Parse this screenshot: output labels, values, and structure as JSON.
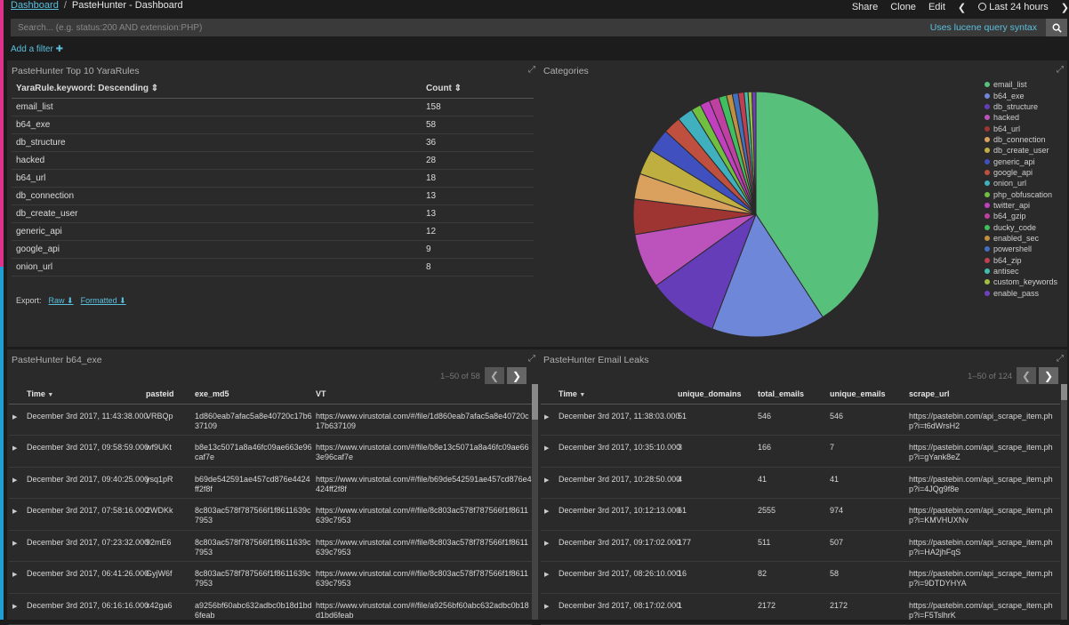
{
  "breadcrumb": {
    "root": "Dashboard",
    "current": "PasteHunter - Dashboard"
  },
  "topnav": {
    "share": "Share",
    "clone": "Clone",
    "edit": "Edit",
    "time_range": "Last 24 hours"
  },
  "search": {
    "placeholder": "Search... (e.g. status:200 AND extension:PHP)",
    "hint": "Uses lucene query syntax"
  },
  "filter": {
    "add_label": "Add a filter",
    "add_icon": "plus-icon"
  },
  "yara_panel": {
    "title": "PasteHunter Top 10 YaraRules",
    "columns": [
      "YaraRule.keyword: Descending",
      "Count"
    ],
    "rows": [
      [
        "email_list",
        "158"
      ],
      [
        "b64_exe",
        "58"
      ],
      [
        "db_structure",
        "36"
      ],
      [
        "hacked",
        "28"
      ],
      [
        "b64_url",
        "18"
      ],
      [
        "db_connection",
        "13"
      ],
      [
        "db_create_user",
        "13"
      ],
      [
        "generic_api",
        "12"
      ],
      [
        "google_api",
        "9"
      ],
      [
        "onion_url",
        "8"
      ]
    ],
    "export": {
      "label": "Export:",
      "raw": "Raw",
      "formatted": "Formatted"
    }
  },
  "categories_panel": {
    "title": "Categories",
    "legend": [
      "email_list",
      "b64_exe",
      "db_structure",
      "hacked",
      "b64_url",
      "db_connection",
      "db_create_user",
      "generic_api",
      "google_api",
      "onion_url",
      "php_obfuscation",
      "twitter_api",
      "b64_gzip",
      "ducky_code",
      "enabled_sec",
      "powershell",
      "b64_zip",
      "antisec",
      "custom_keywords",
      "enable_pass"
    ]
  },
  "chart_data": {
    "type": "pie",
    "title": "Categories",
    "labels": [
      "email_list",
      "b64_exe",
      "db_structure",
      "hacked",
      "b64_url",
      "db_connection",
      "db_create_user",
      "generic_api",
      "google_api",
      "onion_url",
      "php_obfuscation",
      "twitter_api",
      "b64_gzip",
      "ducky_code",
      "enabled_sec",
      "powershell",
      "b64_zip",
      "antisec",
      "custom_keywords",
      "enable_pass"
    ],
    "values": [
      158,
      58,
      36,
      28,
      18,
      13,
      13,
      12,
      9,
      8,
      5,
      5,
      5,
      4,
      3,
      3,
      3,
      2,
      2,
      2
    ],
    "colors": [
      "#57c17b",
      "#6f87d8",
      "#663db8",
      "#bc52bc",
      "#9e3533",
      "#daa05d",
      "#bfaf40",
      "#4050bf",
      "#bf5040",
      "#40b0bf",
      "#70bf40",
      "#c040bf",
      "#bf40a0",
      "#40bf60",
      "#c09040",
      "#4070bf",
      "#bf4050",
      "#40bfb0",
      "#a0bf40",
      "#7040bf"
    ],
    "legend_position": "right"
  },
  "b64_panel": {
    "title": "PasteHunter b64_exe",
    "pager": "1–50 of 58",
    "columns": [
      "Time",
      "pasteid",
      "exe_md5",
      "VT"
    ],
    "rows": [
      [
        "December 3rd 2017, 11:43:38.000",
        "VRBQp",
        "1d860eab7afac5a8e40720c17b637109",
        "https://www.virustotal.com/#/file/1d860eab7afac5a8e40720c17b637109"
      ],
      [
        "December 3rd 2017, 09:58:59.000",
        "wf9UKt",
        "b8e13c5071a8a46fc09ae663e96caf7e",
        "https://www.virustotal.com/#/file/b8e13c5071a8a46fc09ae663e96caf7e"
      ],
      [
        "December 3rd 2017, 09:40:25.000",
        "ysq1pR",
        "b69de542591ae457cd876e4424ff2f8f",
        "https://www.virustotal.com/#/file/b69de542591ae457cd876e4424ff2f8f"
      ],
      [
        "December 3rd 2017, 07:58:16.000",
        "2WDKk",
        "8c803ac578f787566f1f8611639c7953",
        "https://www.virustotal.com/#/file/8c803ac578f787566f1f8611639c7953"
      ],
      [
        "December 3rd 2017, 07:23:32.000",
        "92mE6",
        "8c803ac578f787566f1f8611639c7953",
        "https://www.virustotal.com/#/file/8c803ac578f787566f1f8611639c7953"
      ],
      [
        "December 3rd 2017, 06:41:26.000",
        "GyjW6f",
        "8c803ac578f787566f1f8611639c7953",
        "https://www.virustotal.com/#/file/8c803ac578f787566f1f8611639c7953"
      ],
      [
        "December 3rd 2017, 06:16:16.000",
        "x42ga6",
        "a9256bf60abc632adbc0b18d1bd6feab",
        "https://www.virustotal.com/#/file/a9256bf60abc632adbc0b18d1bd6feab"
      ]
    ]
  },
  "email_panel": {
    "title": "PasteHunter Email Leaks",
    "pager": "1–50 of 124",
    "columns": [
      "Time",
      "unique_domains",
      "total_emails",
      "unique_emails",
      "scrape_url"
    ],
    "rows": [
      [
        "December 3rd 2017, 11:38:03.000",
        "51",
        "546",
        "546",
        "https://pastebin.com/api_scrape_item.php?i=t6dWrsH2"
      ],
      [
        "December 3rd 2017, 10:35:10.000",
        "3",
        "166",
        "7",
        "https://pastebin.com/api_scrape_item.php?i=gYank8eZ"
      ],
      [
        "December 3rd 2017, 10:28:50.000",
        "4",
        "41",
        "41",
        "https://pastebin.com/api_scrape_item.php?i=4JQg9f8e"
      ],
      [
        "December 3rd 2017, 10:12:13.000",
        "61",
        "2555",
        "974",
        "https://pastebin.com/api_scrape_item.php?i=KMVHUXNv"
      ],
      [
        "December 3rd 2017, 09:17:02.000",
        "177",
        "511",
        "507",
        "https://pastebin.com/api_scrape_item.php?i=HA2jhFqS"
      ],
      [
        "December 3rd 2017, 08:26:10.000",
        "16",
        "82",
        "58",
        "https://pastebin.com/api_scrape_item.php?i=9DTDYHYA"
      ],
      [
        "December 3rd 2017, 08:17:02.000",
        "1",
        "2172",
        "2172",
        "https://pastebin.com/api_scrape_item.php?i=F5TslhrK"
      ]
    ]
  }
}
